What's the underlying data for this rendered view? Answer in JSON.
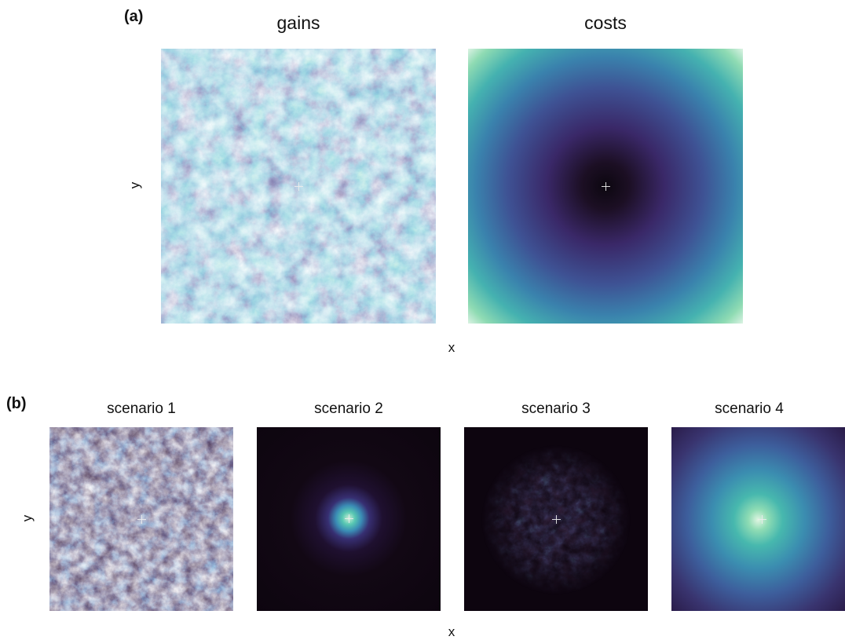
{
  "panels": {
    "a": {
      "label": "(a)",
      "xlabel": "x",
      "ylabel": "y",
      "maps": [
        {
          "title": "gains"
        },
        {
          "title": "costs"
        }
      ]
    },
    "b": {
      "label": "(b)",
      "xlabel": "x",
      "ylabel": "y",
      "maps": [
        {
          "title": "scenario 1"
        },
        {
          "title": "scenario 2"
        },
        {
          "title": "scenario 3"
        },
        {
          "title": "scenario 4"
        }
      ]
    }
  },
  "colors": {
    "map_dark": "#1a0b1e",
    "map_purple": "#3c2c6e",
    "map_blue": "#3a64a8",
    "map_teal": "#3fa3b3",
    "map_mint": "#8ad9b5",
    "map_light": "#e4f6ea",
    "marker": "#e8e8e8"
  },
  "chart_data": [
    {
      "type": "heatmap",
      "title": "gains",
      "xlabel": "x",
      "ylabel": "y",
      "pattern": "noise-field",
      "center_marker": true
    },
    {
      "type": "heatmap",
      "title": "costs",
      "xlabel": "x",
      "ylabel": "y",
      "pattern": "radial-increasing",
      "center_marker": true
    },
    {
      "type": "heatmap",
      "title": "scenario 1",
      "xlabel": "x",
      "ylabel": "y",
      "pattern": "sparse-noise",
      "center_marker": true
    },
    {
      "type": "heatmap",
      "title": "scenario 2",
      "xlabel": "x",
      "ylabel": "y",
      "pattern": "concentrated-center",
      "center_marker": true
    },
    {
      "type": "heatmap",
      "title": "scenario 3",
      "xlabel": "x",
      "ylabel": "y",
      "pattern": "noise-near-center",
      "center_marker": true
    },
    {
      "type": "heatmap",
      "title": "scenario 4",
      "xlabel": "x",
      "ylabel": "y",
      "pattern": "broad-center-peak",
      "center_marker": true
    }
  ]
}
